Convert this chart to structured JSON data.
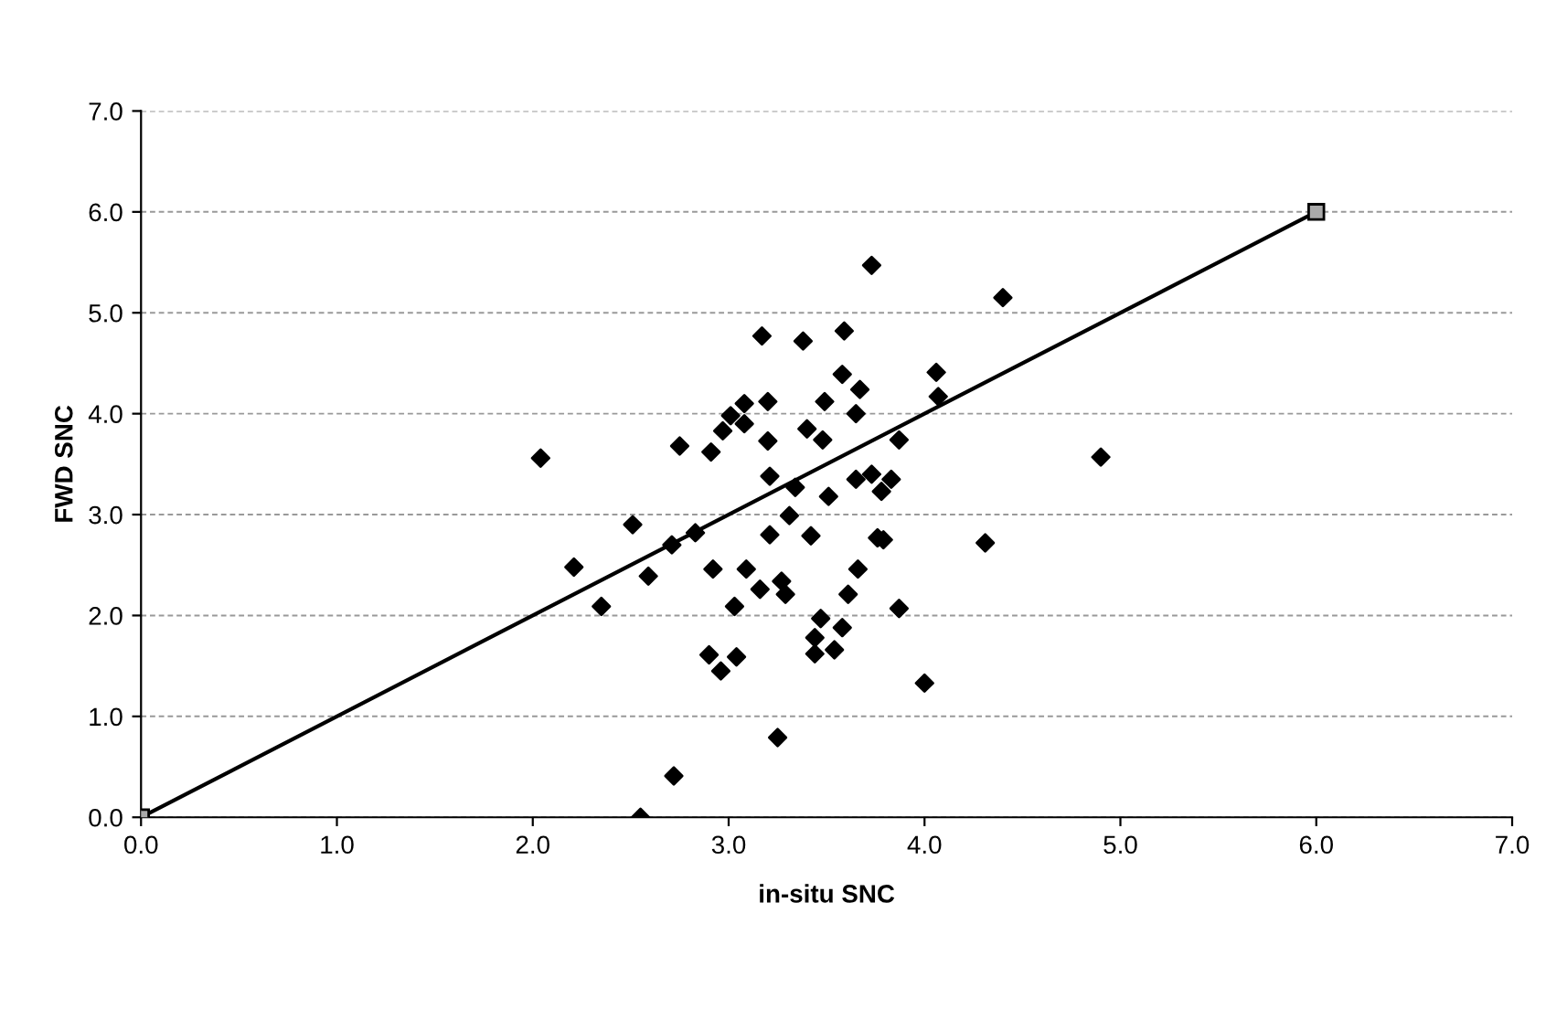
{
  "chart_data": {
    "type": "scatter",
    "xlabel": "in-situ SNC",
    "ylabel": "FWD SNC",
    "xlim": [
      0,
      7
    ],
    "ylim": [
      0,
      7
    ],
    "xticks": [
      {
        "value": 0,
        "label": "0.0"
      },
      {
        "value": 1,
        "label": "1.0"
      },
      {
        "value": 2,
        "label": "2.0"
      },
      {
        "value": 3,
        "label": "3.0"
      },
      {
        "value": 4,
        "label": "4.0"
      },
      {
        "value": 5,
        "label": "5.0"
      },
      {
        "value": 6,
        "label": "6.0"
      },
      {
        "value": 7,
        "label": "7.0"
      }
    ],
    "yticks": [
      {
        "value": 0,
        "label": "0.0"
      },
      {
        "value": 1,
        "label": "1.0"
      },
      {
        "value": 2,
        "label": "2.0"
      },
      {
        "value": 3,
        "label": "3.0"
      },
      {
        "value": 4,
        "label": "4.0"
      },
      {
        "value": 5,
        "label": "5.0"
      },
      {
        "value": 6,
        "label": "6.0"
      },
      {
        "value": 7,
        "label": "7.0"
      }
    ],
    "grid": "y",
    "legend": false,
    "series": [
      {
        "color": "#000000",
        "marker": "diamond",
        "x": [
          2.04,
          2.21,
          2.35,
          2.51,
          2.59,
          2.71,
          2.83,
          2.72,
          2.55,
          2.9,
          2.96,
          3.04,
          2.92,
          3.03,
          3.09,
          3.16,
          3.21,
          3.27,
          3.29,
          3.31,
          3.42,
          3.25,
          3.47,
          3.58,
          3.44,
          3.44,
          3.54,
          3.66,
          3.61,
          3.76,
          3.51,
          2.75,
          2.91,
          2.97,
          3.01,
          3.08,
          3.08,
          3.2,
          3.17,
          3.38,
          3.59,
          3.73,
          3.2,
          3.21,
          3.34,
          3.4,
          3.48,
          3.49,
          3.58,
          3.67,
          3.65,
          3.65,
          3.73,
          4.4,
          4.06,
          4.07,
          3.87,
          4.9,
          3.83,
          3.78,
          3.79,
          4.31,
          3.87,
          4.0
        ],
        "values": [
          3.56,
          2.48,
          2.09,
          2.9,
          2.39,
          2.7,
          2.82,
          0.41,
          0.0,
          1.61,
          1.45,
          1.59,
          2.46,
          2.09,
          2.46,
          2.26,
          2.8,
          2.34,
          2.21,
          2.99,
          2.79,
          0.79,
          1.97,
          1.88,
          1.78,
          1.62,
          1.66,
          2.46,
          2.21,
          2.77,
          3.18,
          3.68,
          3.62,
          3.83,
          3.98,
          4.1,
          3.9,
          4.12,
          4.77,
          4.72,
          4.82,
          5.47,
          3.73,
          3.38,
          3.27,
          3.85,
          3.74,
          4.12,
          4.39,
          4.24,
          4.0,
          3.35,
          3.4,
          5.15,
          4.41,
          4.17,
          3.74,
          3.57,
          3.35,
          3.23,
          2.75,
          2.72,
          2.07,
          1.33
        ]
      },
      {
        "type": "line",
        "color": "#000000",
        "marker": "square",
        "line_style": "solid",
        "x": [
          0,
          6
        ],
        "values": [
          0,
          6
        ]
      }
    ]
  }
}
